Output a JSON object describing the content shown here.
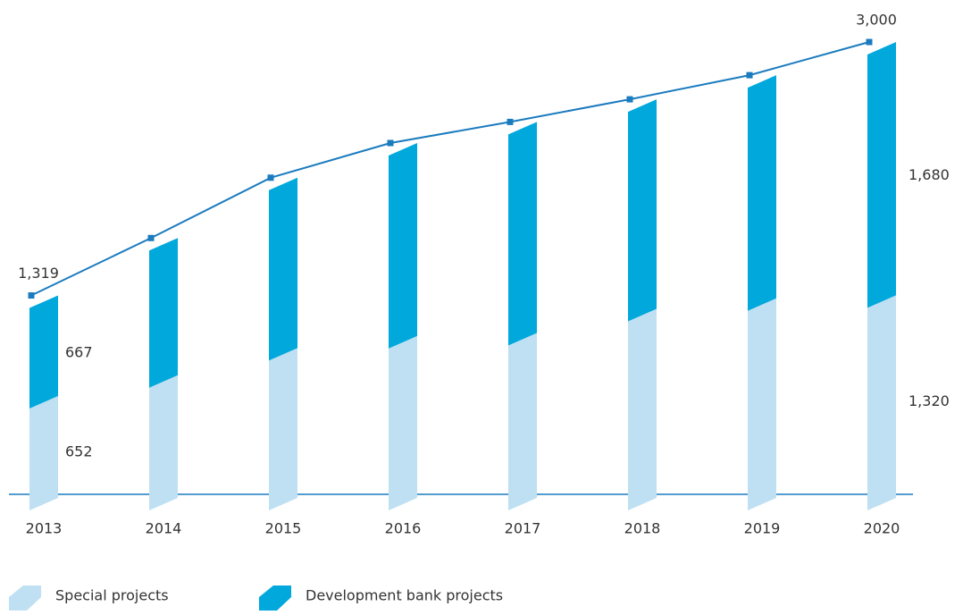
{
  "chart_data": {
    "type": "bar-line",
    "categories": [
      "2013",
      "2014",
      "2015",
      "2016",
      "2017",
      "2018",
      "2019",
      "2020"
    ],
    "series": [
      {
        "name": "Special projects",
        "color": "#bfe0f2",
        "values": [
          652,
          790,
          970,
          1050,
          1070,
          1230,
          1300,
          1320
        ],
        "value_labels": [
          "652",
          null,
          null,
          null,
          null,
          null,
          null,
          "1,320"
        ]
      },
      {
        "name": "Development bank projects",
        "color": "#00a8dc",
        "values": [
          667,
          910,
          1130,
          1280,
          1400,
          1390,
          1480,
          1680
        ],
        "value_labels": [
          "667",
          null,
          null,
          null,
          null,
          null,
          null,
          "1,680"
        ]
      }
    ],
    "totals": {
      "color": "#1a7bbf",
      "values": [
        1319,
        1700,
        2100,
        2330,
        2470,
        2620,
        2780,
        3000
      ],
      "value_labels": [
        "1,319",
        null,
        null,
        null,
        null,
        null,
        null,
        "3,000"
      ]
    }
  }
}
